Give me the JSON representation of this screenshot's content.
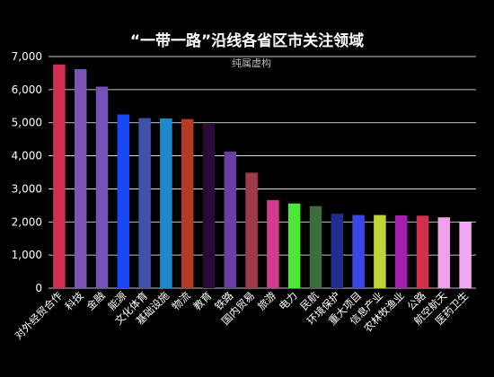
{
  "chart_data": {
    "type": "bar",
    "title": "“一带一路”沿线各省区市关注领域",
    "subtitle": "纯属虚构",
    "xlabel": "",
    "ylabel": "",
    "ylim": [
      0,
      7000
    ],
    "yticks": [
      0,
      1000,
      2000,
      3000,
      4000,
      5000,
      6000,
      7000
    ],
    "ytick_labels": [
      "0",
      "1,000",
      "2,000",
      "3,000",
      "4,000",
      "5,000",
      "6,000",
      "7,000"
    ],
    "grid": true,
    "legend": "none",
    "categories": [
      "对外经贸合作",
      "科技",
      "金融",
      "能源",
      "文化体育",
      "基础设施",
      "物流",
      "教育",
      "铁路",
      "国内贸易",
      "旅游",
      "电力",
      "民航",
      "环境保护",
      "重大项目",
      "信息产业",
      "农林牧渔业",
      "公路",
      "航空航天",
      "医药卫生"
    ],
    "values": [
      6760,
      6620,
      6090,
      5250,
      5140,
      5130,
      5110,
      4970,
      4130,
      3490,
      2660,
      2560,
      2480,
      2250,
      2210,
      2210,
      2200,
      2190,
      2140,
      2000
    ],
    "colors": [
      "#d0304f",
      "#7b54b8",
      "#7652b8",
      "#1a47f5",
      "#3f52a8",
      "#1e88cc",
      "#b33a23",
      "#2b0a38",
      "#6a3fa3",
      "#9e3a4b",
      "#d13d8f",
      "#4ce63a",
      "#3b6e3b",
      "#1f2e8c",
      "#3a46e8",
      "#c2d33a",
      "#a21fb0",
      "#d1304e",
      "#f0a0e8",
      "#f0a8f0"
    ]
  }
}
